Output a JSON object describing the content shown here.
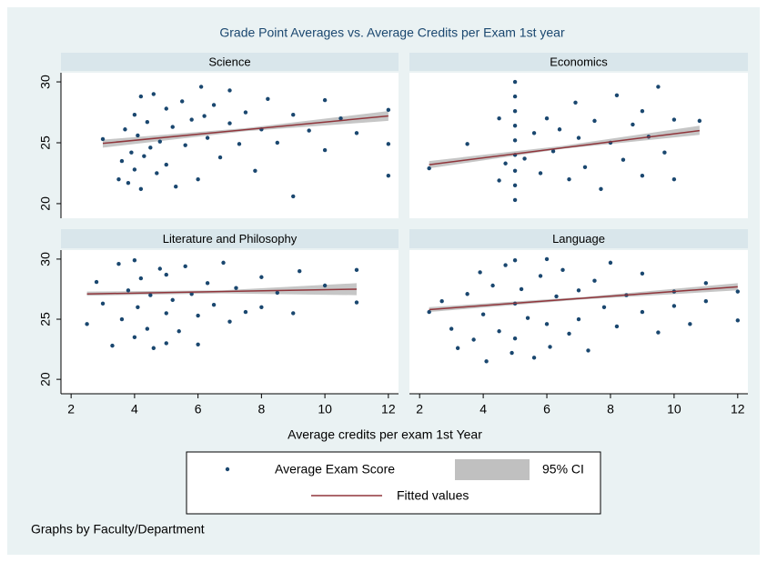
{
  "chart_data": {
    "type": "scatter",
    "title": "Grade Point Averages vs. Average Credits per Exam 1st year",
    "x_label": "Average credits per exam 1st Year",
    "note": "Graphs by Faculty/Department",
    "xlim": [
      1.68,
      12.32
    ],
    "xticks": [
      2,
      4,
      6,
      8,
      10,
      12
    ],
    "ylim": [
      18.8,
      30.75
    ],
    "yticks": [
      20,
      25,
      30
    ],
    "panels": [
      {
        "label": "Science",
        "series": [
          {
            "name": "Average Exam Score",
            "color": "#1a476f",
            "x": [
              3.0,
              3.5,
              3.6,
              3.7,
              3.8,
              3.9,
              4.0,
              4.0,
              4.1,
              4.2,
              4.2,
              4.3,
              4.4,
              4.5,
              4.6,
              4.7,
              4.8,
              5.0,
              5.0,
              5.2,
              5.3,
              5.5,
              5.6,
              5.8,
              6.0,
              6.1,
              6.2,
              6.3,
              6.5,
              6.7,
              7.0,
              7.0,
              7.3,
              7.5,
              7.8,
              8.0,
              8.2,
              8.5,
              9.0,
              9.0,
              9.5,
              10.0,
              10.0,
              10.5,
              11.0,
              12.0,
              12.0,
              12.0
            ],
            "values": [
              25.3,
              22.0,
              23.5,
              26.1,
              21.7,
              24.2,
              27.3,
              22.8,
              25.6,
              28.8,
              21.2,
              23.9,
              26.7,
              24.6,
              29.0,
              22.5,
              25.1,
              27.8,
              23.2,
              26.3,
              21.4,
              28.4,
              24.8,
              26.9,
              22.0,
              29.6,
              27.2,
              25.4,
              28.1,
              23.8,
              26.6,
              29.3,
              24.9,
              27.5,
              22.7,
              26.1,
              28.6,
              25.0,
              27.3,
              20.6,
              26.0,
              28.5,
              24.4,
              27.0,
              25.8,
              27.7,
              22.3,
              24.9
            ]
          },
          {
            "name": "95% CI",
            "color": "#c0c0c0",
            "x": [
              3,
              7.5,
              12
            ],
            "lower": [
              24.6,
              25.95,
              26.8
            ],
            "upper": [
              25.25,
              26.2,
              27.6
            ]
          },
          {
            "name": "Fitted values",
            "color": "#90353b",
            "x": [
              3,
              12
            ],
            "values": [
              24.95,
              27.2
            ]
          }
        ]
      },
      {
        "label": "Economics",
        "series": [
          {
            "name": "Average Exam Score",
            "color": "#1a476f",
            "x": [
              2.3,
              3.5,
              4.5,
              4.5,
              4.7,
              5.0,
              5.0,
              5.0,
              5.0,
              5.0,
              5.0,
              5.0,
              5.0,
              5.0,
              5.3,
              5.6,
              5.8,
              6.0,
              6.2,
              6.4,
              6.7,
              6.9,
              7.0,
              7.2,
              7.5,
              7.7,
              8.0,
              8.2,
              8.4,
              8.7,
              9.0,
              9.0,
              9.2,
              9.5,
              9.7,
              10.0,
              10.0,
              10.8
            ],
            "values": [
              22.9,
              24.9,
              21.9,
              27.0,
              23.3,
              20.3,
              21.5,
              22.7,
              24.0,
              25.2,
              26.4,
              27.6,
              28.8,
              30.0,
              23.7,
              25.8,
              22.5,
              27.0,
              24.3,
              26.1,
              22.0,
              28.3,
              25.4,
              23.0,
              26.8,
              21.2,
              25.0,
              28.9,
              23.6,
              26.5,
              27.6,
              22.3,
              25.5,
              29.6,
              24.2,
              26.9,
              22.0,
              26.8
            ]
          },
          {
            "name": "95% CI",
            "color": "#c0c0c0",
            "x": [
              2.3,
              6.5,
              10.8
            ],
            "lower": [
              22.9,
              24.5,
              25.65
            ],
            "upper": [
              23.5,
              24.75,
              26.4
            ]
          },
          {
            "name": "Fitted values",
            "color": "#90353b",
            "x": [
              2.3,
              10.8
            ],
            "values": [
              23.2,
              26.0
            ]
          }
        ]
      },
      {
        "label": "Literature and Philosophy",
        "series": [
          {
            "name": "Average Exam Score",
            "color": "#1a476f",
            "x": [
              2.5,
              2.8,
              3.0,
              3.3,
              3.5,
              3.6,
              3.8,
              4.0,
              4.0,
              4.1,
              4.2,
              4.4,
              4.5,
              4.6,
              4.8,
              5.0,
              5.0,
              5.0,
              5.2,
              5.4,
              5.6,
              5.8,
              6.0,
              6.0,
              6.3,
              6.5,
              6.8,
              7.0,
              7.2,
              7.5,
              8.0,
              8.0,
              8.5,
              9.0,
              9.2,
              10.0,
              11.0,
              11.0
            ],
            "values": [
              24.6,
              28.1,
              26.3,
              22.8,
              29.6,
              25.0,
              27.4,
              23.5,
              29.9,
              26.0,
              28.4,
              24.2,
              27.0,
              22.6,
              29.2,
              25.5,
              23.0,
              28.7,
              26.6,
              24.0,
              29.4,
              27.1,
              25.3,
              22.9,
              28.0,
              26.2,
              29.7,
              24.8,
              27.6,
              25.6,
              28.5,
              26.0,
              27.2,
              25.5,
              29.0,
              27.8,
              29.1,
              26.4
            ]
          },
          {
            "name": "95% CI",
            "color": "#c0c0c0",
            "x": [
              2.5,
              6.75,
              11
            ],
            "lower": [
              26.95,
              27.15,
              27.0
            ],
            "upper": [
              27.3,
              27.4,
              28.0
            ]
          },
          {
            "name": "Fitted values",
            "color": "#90353b",
            "x": [
              2.5,
              11
            ],
            "values": [
              27.1,
              27.5
            ]
          }
        ]
      },
      {
        "label": "Language",
        "series": [
          {
            "name": "Average Exam Score",
            "color": "#1a476f",
            "x": [
              2.3,
              2.7,
              3.0,
              3.2,
              3.5,
              3.7,
              3.9,
              4.0,
              4.1,
              4.3,
              4.5,
              4.7,
              4.9,
              5.0,
              5.0,
              5.0,
              5.2,
              5.4,
              5.6,
              5.8,
              6.0,
              6.0,
              6.1,
              6.3,
              6.5,
              6.7,
              7.0,
              7.0,
              7.3,
              7.5,
              7.8,
              8.0,
              8.2,
              8.5,
              9.0,
              9.0,
              9.5,
              10.0,
              10.0,
              10.5,
              11.0,
              11.0,
              12.0,
              12.0
            ],
            "values": [
              25.6,
              26.5,
              24.2,
              22.6,
              27.1,
              23.3,
              28.9,
              25.4,
              21.5,
              27.8,
              24.0,
              29.5,
              22.2,
              26.3,
              29.9,
              23.4,
              27.5,
              25.1,
              21.8,
              28.6,
              24.6,
              30.0,
              22.7,
              26.9,
              29.1,
              23.8,
              27.4,
              25.0,
              22.4,
              28.2,
              26.0,
              29.7,
              24.4,
              27.0,
              25.6,
              28.8,
              23.9,
              27.3,
              26.1,
              24.6,
              28.0,
              26.5,
              24.9,
              27.3
            ]
          },
          {
            "name": "95% CI",
            "color": "#c0c0c0",
            "x": [
              2.3,
              7.15,
              12
            ],
            "lower": [
              25.6,
              26.65,
              27.4
            ],
            "upper": [
              26.0,
              26.85,
              28.0
            ]
          },
          {
            "name": "Fitted values",
            "color": "#90353b",
            "x": [
              2.3,
              12
            ],
            "values": [
              25.8,
              27.7
            ]
          }
        ]
      }
    ]
  }
}
